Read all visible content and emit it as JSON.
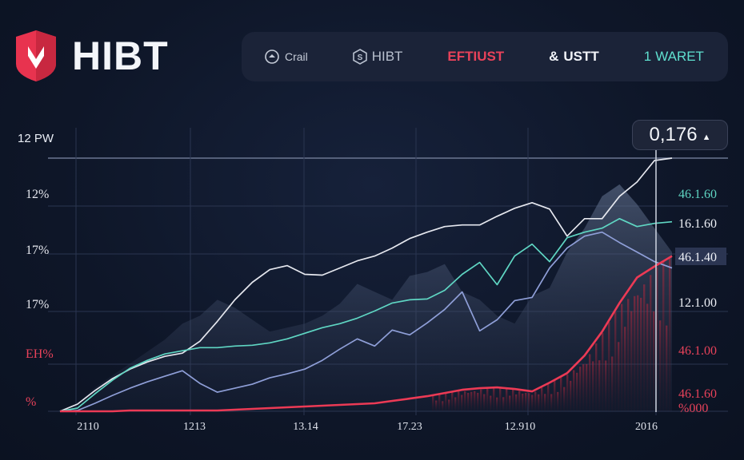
{
  "brand": {
    "name": "HIBT",
    "accent": "#e8334f"
  },
  "nav": [
    {
      "label": "Crail",
      "icon": "circle-arrow-icon",
      "color": "#c6ccd8"
    },
    {
      "label": "HIBT",
      "icon": "hexagon-s-icon",
      "color": "#b8c0ce"
    },
    {
      "label": "EFTIUST",
      "icon": "",
      "color": "#e8425a"
    },
    {
      "label": "USTT",
      "icon": "ampersand-icon",
      "color": "#f1f3f8"
    },
    {
      "label": "WARET",
      "prefix": "1",
      "icon": "",
      "color": "#5fe0cf"
    }
  ],
  "price_badge": "0,176",
  "chart_data": {
    "type": "line",
    "corner_label": "12 PW",
    "left_labels": [
      "12%",
      "17%",
      "17%",
      "EH%",
      "%"
    ],
    "right_labels": [
      "46.1.60",
      "16.1.60",
      "46.1.40",
      "12.1.00",
      "46.1.00",
      "46.1.60",
      "%000"
    ],
    "x_ticks": [
      "2110",
      "1213",
      "13.14",
      "17.23",
      "12.910",
      "2016"
    ],
    "grid": true,
    "series": [
      {
        "color": "#e6e8ef",
        "values": [
          0,
          9,
          26,
          41,
          53,
          62,
          69,
          73,
          88,
          113,
          140,
          162,
          178,
          183,
          172,
          171,
          180,
          189,
          195,
          205,
          217,
          225,
          232,
          234,
          234,
          245,
          255,
          262,
          254,
          220,
          242,
          242,
          270,
          288,
          315,
          318
        ]
      },
      {
        "color": "#5fd6c3",
        "values": [
          0,
          4,
          22,
          39,
          54,
          64,
          72,
          76,
          80,
          80,
          82,
          83,
          86,
          91,
          98,
          105,
          110,
          117,
          126,
          136,
          140,
          141,
          152,
          172,
          187,
          159,
          195,
          210,
          188,
          218,
          225,
          230,
          242,
          232,
          236,
          238
        ]
      },
      {
        "color": "#8f9fd8",
        "values": [
          0,
          1,
          10,
          20,
          29,
          37,
          44,
          51,
          35,
          24,
          29,
          34,
          42,
          47,
          53,
          64,
          78,
          91,
          82,
          102,
          96,
          111,
          128,
          150,
          101,
          115,
          139,
          143,
          180,
          205,
          220,
          225,
          212,
          200,
          188,
          180
        ]
      },
      {
        "color": "#ec3a55",
        "values": [
          0,
          0,
          0,
          0,
          1,
          1,
          1,
          1,
          1,
          1,
          2,
          3,
          4,
          5,
          6,
          7,
          8,
          9,
          10,
          13,
          16,
          19,
          23,
          27,
          29,
          30,
          28,
          25,
          36,
          48,
          70,
          100,
          136,
          168,
          182,
          195
        ]
      }
    ],
    "area": {
      "color": "#5b6a86",
      "values": [
        0,
        10,
        30,
        45,
        60,
        75,
        90,
        110,
        120,
        140,
        130,
        115,
        100,
        105,
        110,
        120,
        135,
        160,
        150,
        140,
        170,
        175,
        185,
        150,
        140,
        120,
        110,
        145,
        155,
        200,
        230,
        270,
        285,
        260,
        230,
        200
      ]
    }
  }
}
